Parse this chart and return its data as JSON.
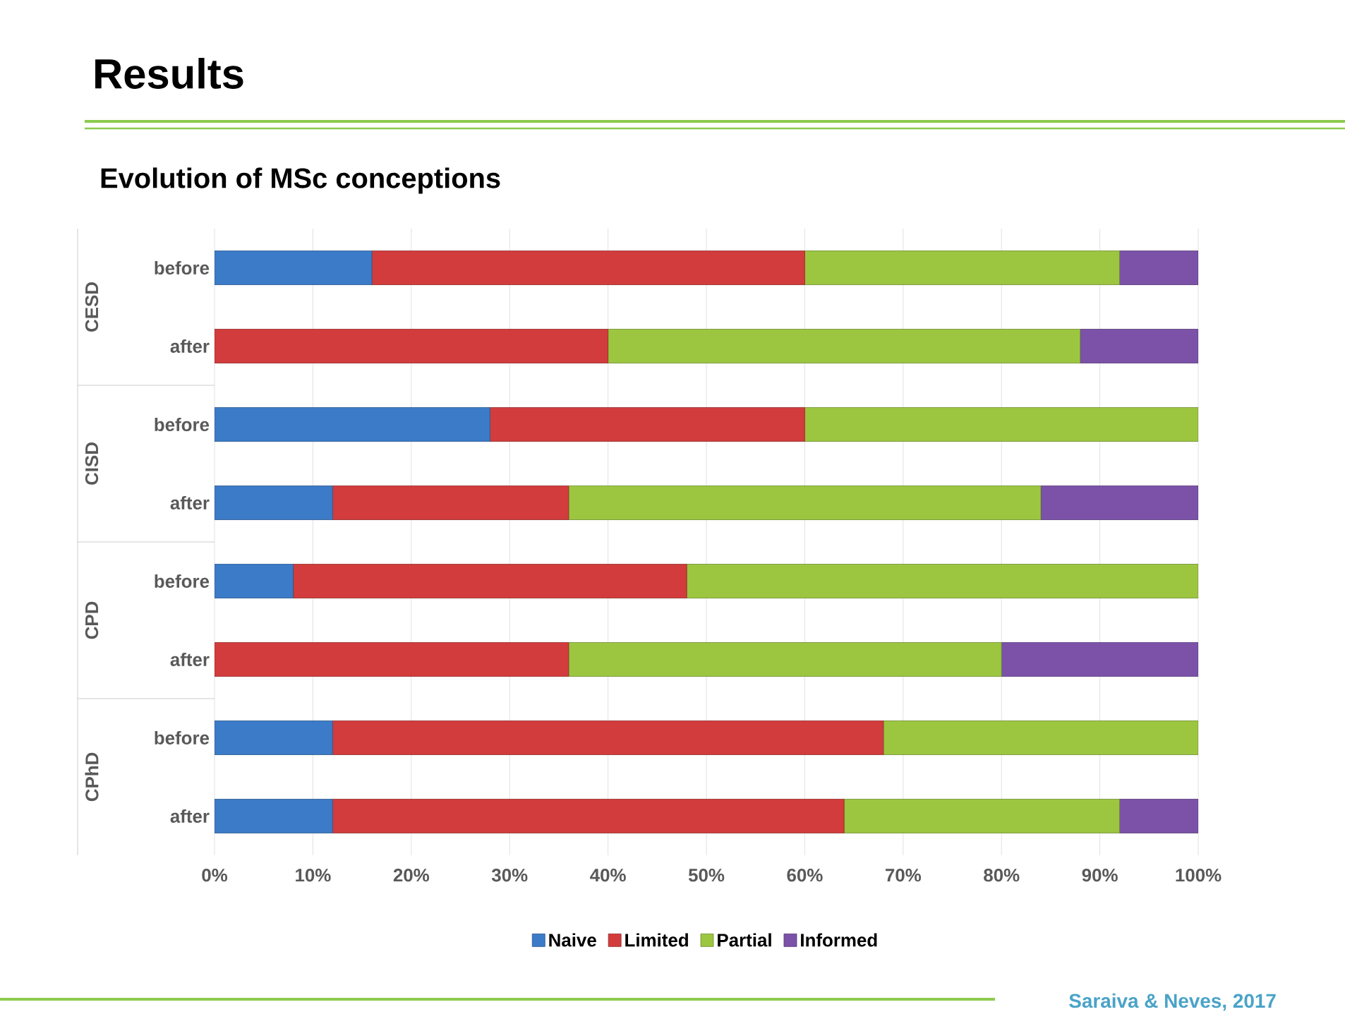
{
  "chart_data": {
    "type": "bar",
    "orientation": "horizontal",
    "stacked": true,
    "title": "Results",
    "subtitle": "Evolution of  MSc conceptions",
    "categories": [
      "before",
      "after",
      "before",
      "after",
      "before",
      "after",
      "before",
      "after"
    ],
    "series": [
      {
        "name": "Naive",
        "color": "#3b7bc8",
        "values": [
          16,
          0,
          28,
          12,
          8,
          0,
          12,
          12
        ]
      },
      {
        "name": "Limited",
        "color": "#d23c3c",
        "values": [
          44,
          40,
          32,
          24,
          40,
          36,
          56,
          52
        ]
      },
      {
        "name": "Partial",
        "color": "#9cc640",
        "values": [
          32,
          48,
          40,
          48,
          52,
          44,
          32,
          28
        ]
      },
      {
        "name": "Informed",
        "color": "#7b52a8",
        "values": [
          8,
          12,
          0,
          16,
          0,
          20,
          0,
          8
        ]
      }
    ],
    "xlim": [
      0,
      100
    ],
    "xticks": [
      {
        "value": 0,
        "label": "0%"
      },
      {
        "value": 10,
        "label": "10%"
      },
      {
        "value": 20,
        "label": "20%"
      },
      {
        "value": 30,
        "label": "30%"
      },
      {
        "value": 40,
        "label": "40%"
      },
      {
        "value": 50,
        "label": "50%"
      },
      {
        "value": 60,
        "label": "60%"
      },
      {
        "value": 70,
        "label": "70%"
      },
      {
        "value": 80,
        "label": "80%"
      },
      {
        "value": 90,
        "label": "90%"
      },
      {
        "value": 100,
        "label": "100%"
      }
    ],
    "grid": "x",
    "legend": "bottom",
    "annotations": [
      "CESD",
      "CISD",
      "CPD",
      "CPhD",
      "Saraiva & Neves, 2017"
    ]
  }
}
